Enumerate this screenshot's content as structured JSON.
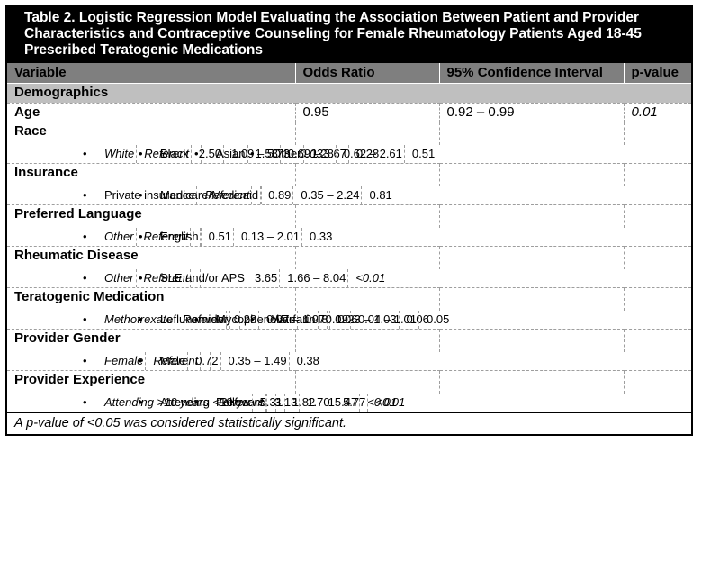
{
  "table": {
    "title": "Table 2. Logistic Regression Model Evaluating the Association Between Patient and Provider Characteristics and Contraceptive Counseling for Female Rheumatology Patients Aged 18-45 Prescribed Teratogenic Medications",
    "columns": [
      "Variable",
      "Odds Ratio",
      "95% Confidence Interval",
      "p-value"
    ],
    "rows": [
      {
        "type": "section",
        "label": "Demographics"
      },
      {
        "type": "variable",
        "label": "Age",
        "or": "0.95",
        "ci": "0.92 – 0.99",
        "p": "0.01",
        "p_italic": true
      },
      {
        "type": "variable",
        "label": "Race"
      },
      {
        "type": "bullet",
        "label": "White",
        "label_italic": true,
        "or": "Referent",
        "or_italic": true,
        "ci": "",
        "p": ""
      },
      {
        "type": "bullet",
        "label": "Black",
        "or": "2.50",
        "ci": "1.09 – 5.73",
        "p": "0.03",
        "p_italic": true
      },
      {
        "type": "bullet",
        "label": "Asian",
        "or": "1.58",
        "ci": "0.69 – 3.67",
        "p": "0.28"
      },
      {
        "type": "bullet",
        "label": "Other",
        "or": "1.28",
        "ci": "0.62 – 2.61",
        "p": "0.51"
      },
      {
        "type": "variable",
        "label": "Insurance"
      },
      {
        "type": "bullet",
        "label": "Private insurance",
        "or": "Referent",
        "or_italic": true,
        "ci": "",
        "p": ""
      },
      {
        "type": "bullet",
        "label": "Medicare/Medicaid",
        "or": "0.89",
        "ci": "0.35 – 2.24",
        "p": "0.81"
      },
      {
        "type": "variable",
        "label": "Preferred Language"
      },
      {
        "type": "bullet",
        "label": "Other",
        "label_italic": true,
        "or": "Referent",
        "or_italic": true,
        "ci": "",
        "p": ""
      },
      {
        "type": "bullet",
        "label": "English",
        "or": "0.51",
        "ci": "0.13 – 2.01",
        "p": "0.33"
      },
      {
        "type": "variable",
        "label": "Rheumatic Disease"
      },
      {
        "type": "bullet",
        "label": "Other",
        "label_italic": true,
        "or": "Referent",
        "or_italic": true,
        "ci": "",
        "p": ""
      },
      {
        "type": "bullet",
        "label": "SLE and/or APS",
        "or": "3.65",
        "ci": "1.66 – 8.04",
        "p": "<0.01",
        "p_italic": true
      },
      {
        "type": "variable",
        "label": "Teratogenic Medication"
      },
      {
        "type": "bullet",
        "label": "Methotrexate",
        "label_italic": true,
        "or": "Referent",
        "or_italic": true,
        "ci": "",
        "p": ""
      },
      {
        "type": "bullet",
        "label": "Leflunomide",
        "or": "0.28",
        "ci": "0.07 – 1.07",
        "p": "0.06"
      },
      {
        "type": "bullet",
        "label": "Mycophenolate",
        "or": "0.48",
        "ci": "0.23 – 1.03",
        "p": "0.06"
      },
      {
        "type": "bullet",
        "label": "Warfarin",
        "or": "0.19",
        "ci": "0.04 – 1.01",
        "p": "0.05"
      },
      {
        "type": "variable",
        "label": "Provider Gender"
      },
      {
        "type": "bullet",
        "label": "Female",
        "label_italic": true,
        "or": "Referent",
        "or_italic": true,
        "ci": "",
        "p": ""
      },
      {
        "type": "bullet",
        "label": "Male",
        "or": "0.72",
        "ci": "0.35 – 1.49",
        "p": "0.38"
      },
      {
        "type": "variable",
        "label": "Provider Experience"
      },
      {
        "type": "bullet",
        "label": "Attending >10 years",
        "label_italic": true,
        "or": "Referent",
        "or_italic": true,
        "ci": "",
        "p": ""
      },
      {
        "type": "bullet",
        "label": "Attending <10 years",
        "or": "3.13",
        "ci": "1.70 – 5.77",
        "p": "<0.01",
        "p_italic": true
      },
      {
        "type": "bullet",
        "label": "Fellow",
        "or": "5.31",
        "ci": "1.82 – 15.47",
        "p": "<0.01",
        "p_italic": true
      }
    ],
    "footnote": "A p-value of <0.05 was considered statistically significant.",
    "colors": {
      "title_bg": "#000000",
      "title_text": "#ffffff",
      "header_bg": "#7f7f7f",
      "section_bg": "#bfbfbf",
      "grid": "#9e9e9e"
    }
  }
}
